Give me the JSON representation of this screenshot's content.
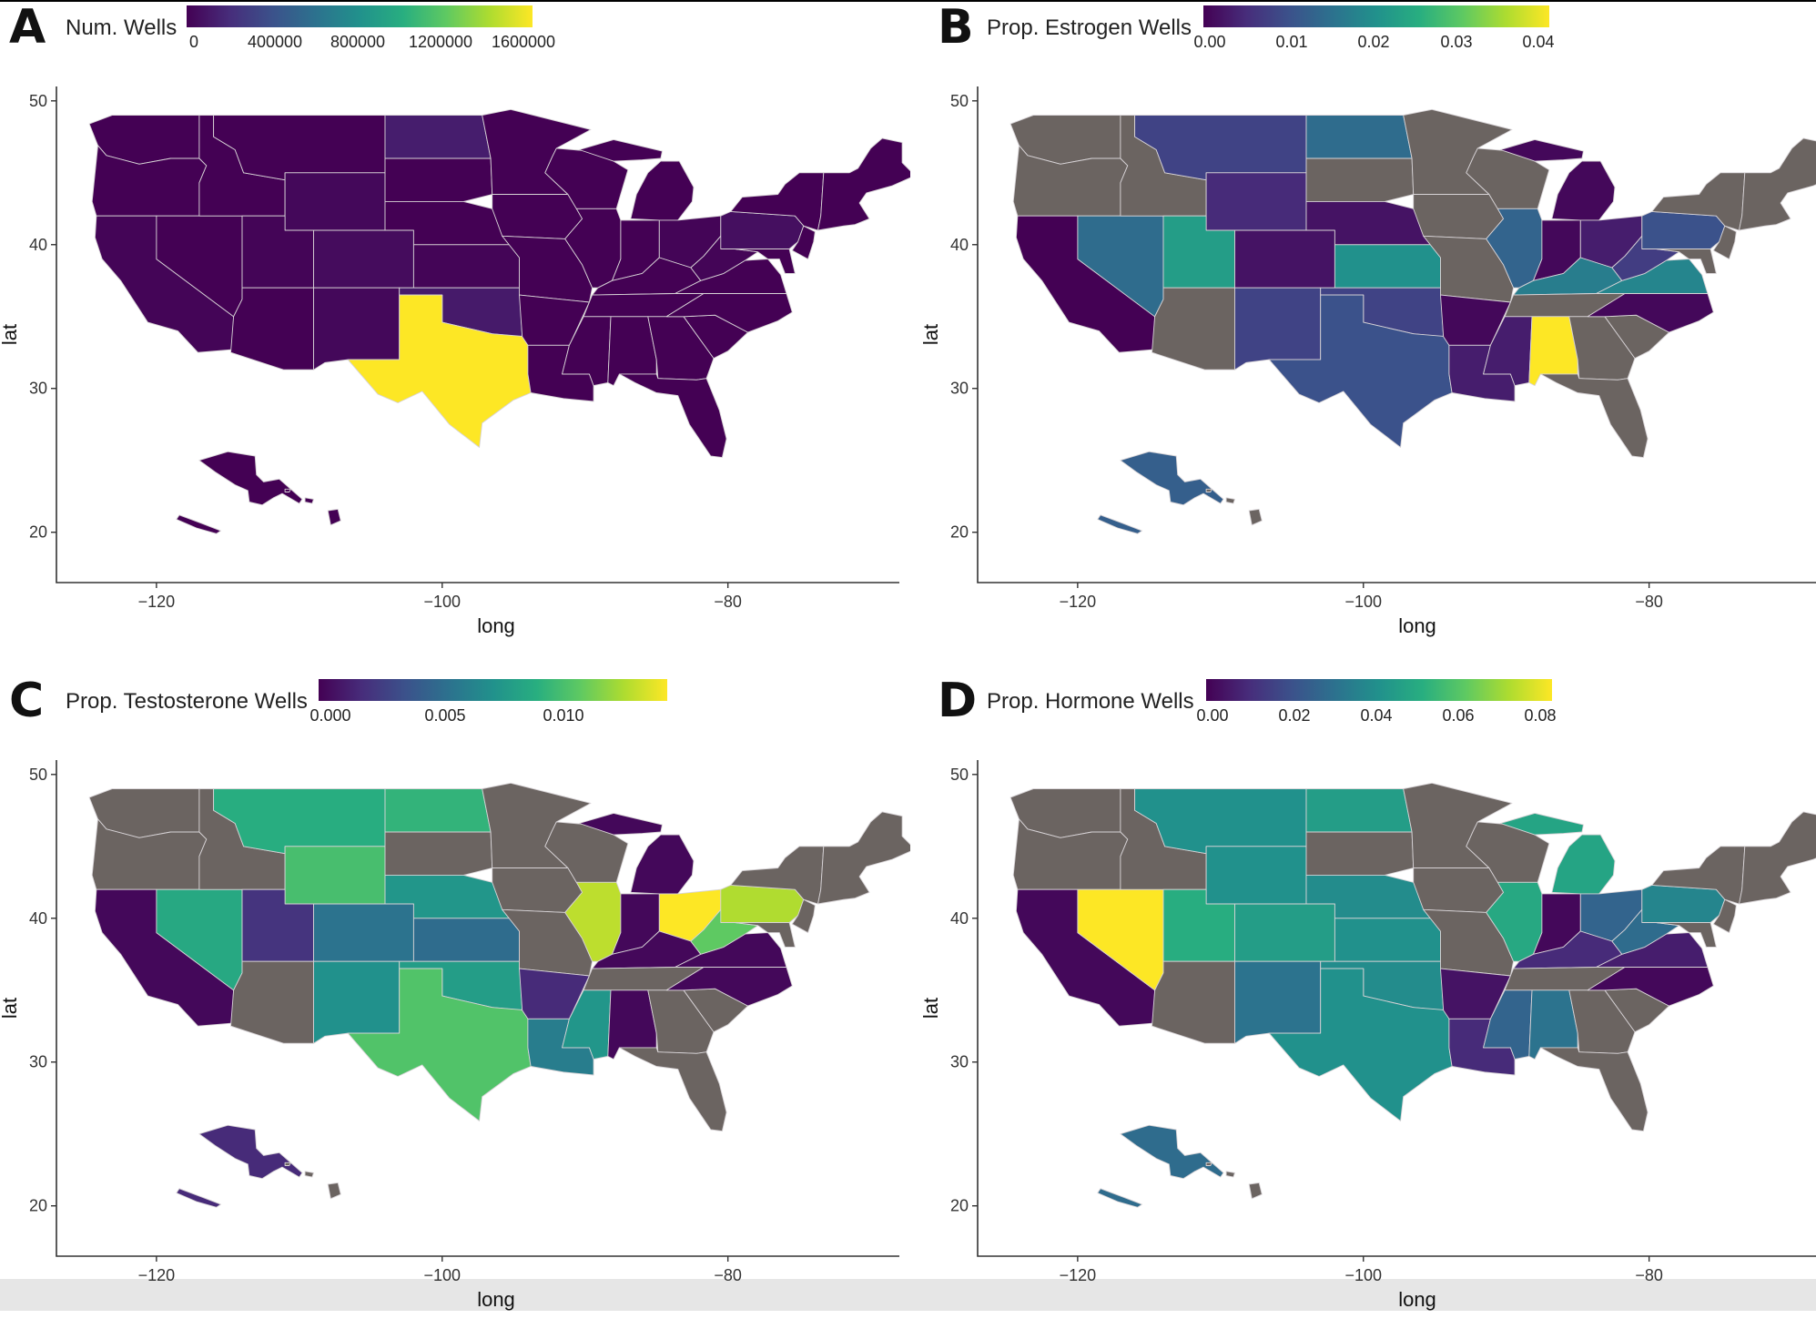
{
  "colors": {
    "no_data": "#6b6461",
    "viridis": [
      "#440154",
      "#472d7b",
      "#3b528b",
      "#2c728e",
      "#21918c",
      "#28ae80",
      "#5ec962",
      "#addc30",
      "#fde725"
    ]
  },
  "axes": {
    "x_label": "long",
    "y_label": "lat",
    "x_ticks": [
      "−120",
      "−100",
      "−80"
    ],
    "y_ticks": [
      "50",
      "40",
      "30",
      "20"
    ]
  },
  "panels": [
    {
      "letter": "A",
      "legend_title": "Num. Wells",
      "legend_ticks": [
        "0",
        "400000",
        "800000",
        "1200000",
        "1600000"
      ],
      "values": {
        "TX": 1.0,
        "ND": 0.08,
        "OK": 0.07,
        "CO": 0.03,
        "PA": 0.04,
        "WY": 0.02,
        "NM": 0.02,
        "UT": 0.01,
        "WV": 0.01,
        "CA": 0.01,
        "OH": 0.01,
        "KS": 0.01
      }
    },
    {
      "letter": "B",
      "legend_title": "Prop. Estrogen Wells",
      "legend_ticks": [
        "0.00",
        "0.01",
        "0.02",
        "0.03",
        "0.04"
      ],
      "values": {
        "CA": 0.0,
        "NV": 0.35,
        "UT": 0.55,
        "AZ": null,
        "WA": null,
        "OR": null,
        "ID": null,
        "MT": 0.2,
        "WY": 0.12,
        "CO": 0.05,
        "NM": 0.2,
        "ND": 0.35,
        "SD": null,
        "NE": 0.05,
        "KS": 0.5,
        "OK": 0.2,
        "TX": 0.25,
        "MN": null,
        "IA": null,
        "MO": null,
        "AR": 0.02,
        "LA": 0.08,
        "WI": null,
        "IL": 0.32,
        "MI": 0.02,
        "IN": 0.02,
        "KY": 0.42,
        "TN": null,
        "MS": 0.08,
        "AL": 1.0,
        "GA": null,
        "FL": null,
        "SC": null,
        "NC": 0.02,
        "VA": 0.45,
        "WV": 0.18,
        "OH": 0.08,
        "PA": 0.25,
        "NY": null,
        "NE_STATES": null,
        "AK": 0.3,
        "HI": null
      }
    },
    {
      "letter": "C",
      "legend_title": "Prop. Testosterone Wells",
      "legend_ticks": [
        "0.000",
        "0.005",
        "0.010"
      ],
      "values": {
        "CA": 0.02,
        "NV": 0.6,
        "UT": 0.15,
        "AZ": null,
        "WA": null,
        "OR": null,
        "ID": null,
        "MT": 0.62,
        "WY": 0.7,
        "CO": 0.38,
        "NM": 0.5,
        "ND": 0.65,
        "SD": null,
        "NE": 0.52,
        "KS": 0.35,
        "OK": 0.55,
        "TX": 0.72,
        "MN": null,
        "IA": null,
        "MO": null,
        "AR": 0.12,
        "LA": 0.42,
        "MS": 0.52,
        "AL": 0.02,
        "WI": null,
        "IL": 0.9,
        "MI": 0.02,
        "IN": 0.02,
        "KY": 0.02,
        "TN": null,
        "GA": null,
        "FL": null,
        "SC": null,
        "NC": 0.02,
        "VA": 0.02,
        "WV": 0.75,
        "OH": 1.0,
        "PA": 0.88,
        "NY": null,
        "NE_STATES": null,
        "AK": 0.12,
        "HI": null
      }
    },
    {
      "letter": "D",
      "legend_title": "Prop. Hormone Wells",
      "legend_ticks": [
        "0.00",
        "0.02",
        "0.04",
        "0.06",
        "0.08"
      ],
      "values": {
        "CA": 0.02,
        "NV": 1.0,
        "UT": 0.62,
        "AZ": null,
        "WA": null,
        "OR": null,
        "ID": null,
        "MT": 0.5,
        "WY": 0.5,
        "CO": 0.55,
        "NM": 0.38,
        "ND": 0.55,
        "SD": null,
        "NE": 0.48,
        "KS": 0.5,
        "OK": 0.48,
        "TX": 0.5,
        "MN": null,
        "IA": null,
        "MO": null,
        "AR": 0.05,
        "LA": 0.12,
        "MS": 0.32,
        "AL": 0.38,
        "WI": null,
        "IL": 0.6,
        "MI": 0.58,
        "IN": 0.02,
        "KY": 0.12,
        "TN": null,
        "GA": null,
        "FL": null,
        "SC": null,
        "NC": 0.02,
        "VA": 0.08,
        "WV": 0.35,
        "OH": 0.32,
        "PA": 0.45,
        "NY": null,
        "NE_STATES": null,
        "AK": 0.35,
        "HI": null
      }
    }
  ]
}
